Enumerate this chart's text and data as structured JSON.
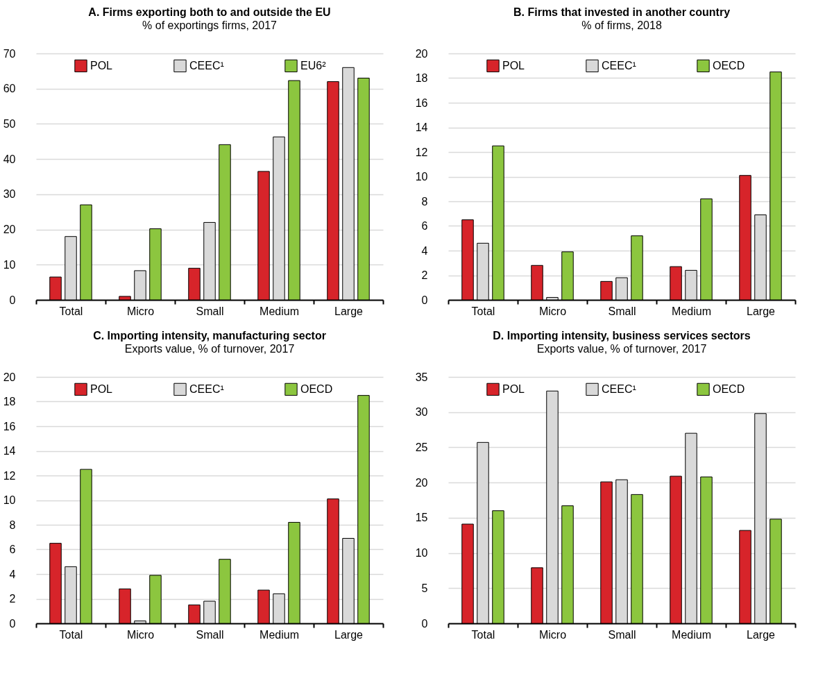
{
  "chart_data": [
    {
      "type": "bar",
      "title": "A. Firms exporting both to and outside the EU",
      "subtitle": "% of exportings firms, 2017",
      "categories": [
        "Total",
        "Micro",
        "Small",
        "Medium",
        "Large"
      ],
      "series": [
        {
          "name": "POL",
          "color": "#d7242a",
          "values": [
            6.5,
            1,
            9,
            36.5,
            62
          ]
        },
        {
          "name": "CEEC¹",
          "color": "#d9d9d9",
          "values": [
            18,
            8.3,
            22,
            46.3,
            66
          ]
        },
        {
          "name": "EU6²",
          "color": "#8cc63f",
          "values": [
            27,
            20.2,
            44.1,
            62.3,
            63
          ]
        }
      ],
      "ylim": [
        0,
        70
      ],
      "yticks": [
        0,
        10,
        20,
        30,
        40,
        50,
        60,
        70
      ],
      "grid": "y",
      "legend": "top"
    },
    {
      "type": "bar",
      "title": "B. Firms that invested in another country",
      "subtitle": "% of firms, 2018",
      "categories": [
        "Total",
        "Micro",
        "Small",
        "Medium",
        "Large"
      ],
      "series": [
        {
          "name": "POL",
          "color": "#d7242a",
          "values": [
            6.5,
            2.8,
            1.5,
            2.7,
            10.1
          ]
        },
        {
          "name": "CEEC¹",
          "color": "#d9d9d9",
          "values": [
            4.6,
            0.2,
            1.8,
            2.4,
            6.9
          ]
        },
        {
          "name": "OECD",
          "color": "#8cc63f",
          "values": [
            12.5,
            3.9,
            5.2,
            8.2,
            18.5
          ]
        }
      ],
      "ylim": [
        0,
        20
      ],
      "yticks": [
        0,
        2,
        4,
        6,
        8,
        10,
        12,
        14,
        16,
        18,
        20
      ],
      "grid": "y",
      "legend": "top"
    },
    {
      "type": "bar",
      "title": "C. Importing intensity, manufacturing sector",
      "subtitle": "Exports value, % of turnover, 2017",
      "categories": [
        "Total",
        "Micro",
        "Small",
        "Medium",
        "Large"
      ],
      "series": [
        {
          "name": "POL",
          "color": "#d7242a",
          "values": [
            6.5,
            2.8,
            1.5,
            2.7,
            10.1
          ]
        },
        {
          "name": "CEEC¹",
          "color": "#d9d9d9",
          "values": [
            4.6,
            0.2,
            1.8,
            2.4,
            6.9
          ]
        },
        {
          "name": "OECD",
          "color": "#8cc63f",
          "values": [
            12.5,
            3.9,
            5.2,
            8.2,
            18.5
          ]
        }
      ],
      "ylim": [
        0,
        20
      ],
      "yticks": [
        0,
        2,
        4,
        6,
        8,
        10,
        12,
        14,
        16,
        18,
        20
      ],
      "grid": "y",
      "legend": "top"
    },
    {
      "type": "bar",
      "title": "D. Importing intensity, business services sectors",
      "subtitle": "Exports value, % of turnover, 2017",
      "categories": [
        "Total",
        "Micro",
        "Small",
        "Medium",
        "Large"
      ],
      "series": [
        {
          "name": "POL",
          "color": "#d7242a",
          "values": [
            14.1,
            7.9,
            20.1,
            20.9,
            13.2
          ]
        },
        {
          "name": "CEEC¹",
          "color": "#d9d9d9",
          "values": [
            25.7,
            33,
            20.4,
            27,
            29.8
          ]
        },
        {
          "name": "OECD",
          "color": "#8cc63f",
          "values": [
            16,
            16.7,
            18.3,
            20.8,
            14.8
          ]
        }
      ],
      "ylim": [
        0,
        35
      ],
      "yticks": [
        0,
        5,
        10,
        15,
        20,
        25,
        30,
        35
      ],
      "grid": "y",
      "legend": "top"
    }
  ]
}
